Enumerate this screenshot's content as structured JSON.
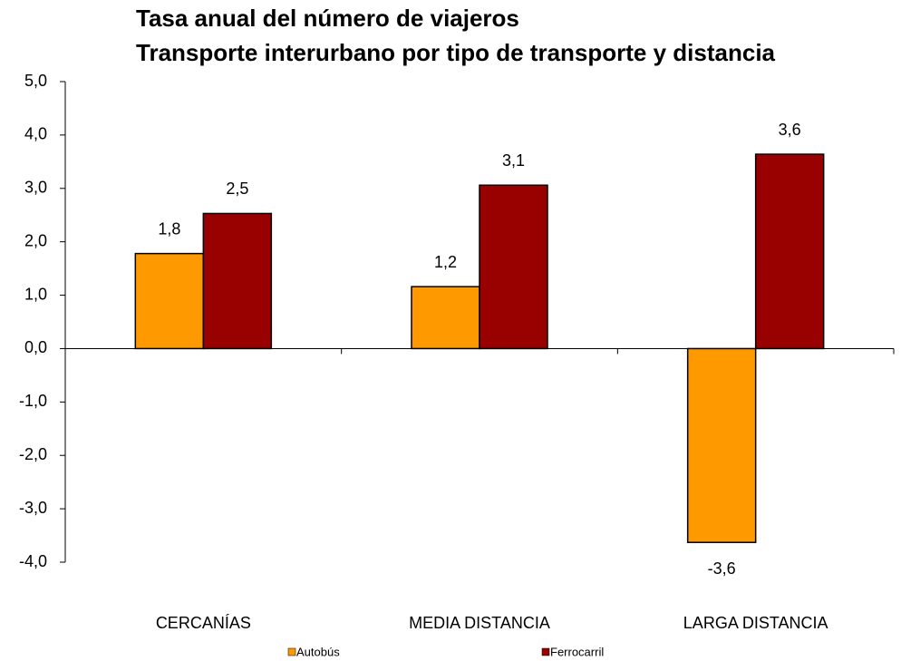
{
  "chart_data": {
    "type": "bar",
    "title": [
      "Tasa anual del número de viajeros",
      "Transporte interurbano por tipo de transporte y distancia"
    ],
    "categories": [
      "CERCANÍAS",
      "MEDIA DISTANCIA",
      "LARGA DISTANCIA"
    ],
    "series": [
      {
        "name": "Autobús",
        "color": "#ff9900",
        "values": [
          1.78,
          1.16,
          -3.63
        ],
        "value_labels": [
          "1,8",
          "1,2",
          "-3,6"
        ]
      },
      {
        "name": "Ferrocarril",
        "color": "#990000",
        "values": [
          2.53,
          3.06,
          3.64
        ],
        "value_labels": [
          "2,5",
          "3,1",
          "3,6"
        ]
      }
    ],
    "ylim": [
      -4,
      5
    ],
    "yticks": [
      {
        "value": -4,
        "label": "-4,0"
      },
      {
        "value": -3,
        "label": "-3,0"
      },
      {
        "value": -2,
        "label": "-2,0"
      },
      {
        "value": -1,
        "label": "-1,0"
      },
      {
        "value": 0,
        "label": "0,0"
      },
      {
        "value": 1,
        "label": "1,0"
      },
      {
        "value": 2,
        "label": "2,0"
      },
      {
        "value": 3,
        "label": "3,0"
      },
      {
        "value": 4,
        "label": "4,0"
      },
      {
        "value": 5,
        "label": "5,0"
      }
    ],
    "grid": false,
    "legend": "bottom"
  }
}
